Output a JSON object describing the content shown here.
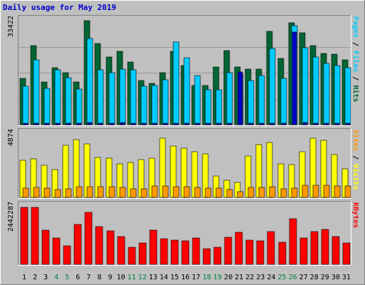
{
  "chart_data": {
    "type": "bar",
    "title": "Daily usage for May 2019",
    "days": [
      "1",
      "2",
      "3",
      "4",
      "5",
      "6",
      "7",
      "8",
      "9",
      "10",
      "11",
      "12",
      "13",
      "14",
      "15",
      "16",
      "17",
      "18",
      "19",
      "20",
      "21",
      "22",
      "23",
      "24",
      "25",
      "26",
      "27",
      "28",
      "29",
      "30",
      "31"
    ],
    "weekend_days": [
      "4",
      "5",
      "11",
      "12",
      "18",
      "19",
      "25",
      "26"
    ],
    "colors": {
      "hits": "#006633",
      "files": "#00ccff",
      "pages": "#0000cc",
      "visits": "#ffff00",
      "sites": "#ff9900",
      "kbytes": "#ff0000",
      "plot_bg": "#c0c0c0",
      "frame_bg": "#c0c0c0",
      "weekday_label": "#000000",
      "weekend_label": "#007f3f"
    },
    "panels": [
      {
        "id": "hits-files-pages",
        "max_label": "33422",
        "ymax": 33422,
        "side_labels": [
          {
            "text": "Pages",
            "color": "#00ccff"
          },
          {
            "text": " / ",
            "color": "#000000"
          },
          {
            "text": "Files",
            "color": "#00ccff"
          },
          {
            "text": " / ",
            "color": "#000000"
          },
          {
            "text": "Hits",
            "color": "#006633"
          }
        ],
        "series": [
          {
            "name": "Hits",
            "color": "#006633",
            "values": [
              14900,
              25300,
              13700,
              18200,
              16700,
              13800,
              33400,
              26000,
              21800,
              23600,
              20200,
              14300,
              13300,
              16800,
              23600,
              19100,
              12700,
              12600,
              18600,
              23700,
              18600,
              17800,
              17800,
              30100,
              21400,
              32800,
              29500,
              25300,
              23000,
              22600,
              20900
            ]
          },
          {
            "name": "Files",
            "color": "#00ccff",
            "values": [
              12300,
              20800,
              11600,
              17700,
              15200,
              11400,
              27700,
              17700,
              16600,
              17800,
              17700,
              12300,
              12700,
              14400,
              26500,
              21500,
              15700,
              11300,
              11300,
              16700,
              16300,
              14100,
              15900,
              24500,
              14900,
              31800,
              24700,
              21700,
              19800,
              19000,
              18200
            ]
          },
          {
            "name": "Pages",
            "color": "#0000cc",
            "values": [
              500,
              500,
              400,
              500,
              400,
              400,
              700,
              500,
              500,
              600,
              500,
              400,
              400,
              500,
              500,
              500,
              400,
              400,
              400,
              500,
              17000,
              500,
              500,
              500,
              400,
              29800,
              600,
              500,
              500,
              500,
              500
            ]
          }
        ]
      },
      {
        "id": "visits-sites",
        "max_label": "4874",
        "ymax": 4874,
        "side_labels": [
          {
            "text": "Sites",
            "color": "#ff9900"
          },
          {
            "text": " / ",
            "color": "#000000"
          },
          {
            "text": "Visits",
            "color": "#ffff00"
          }
        ],
        "series": [
          {
            "name": "Visits",
            "color": "#ffff00",
            "values": [
              2850,
              2950,
              2450,
              2150,
              4000,
              4450,
              4100,
              3050,
              3000,
              2600,
              2700,
              2900,
              3000,
              4550,
              3950,
              3800,
              3500,
              3350,
              1650,
              1300,
              1150,
              3200,
              4050,
              4200,
              2550,
              2500,
              3500,
              4550,
              4400,
              3300,
              2200
            ]
          },
          {
            "name": "Sites",
            "color": "#ff9900",
            "values": [
              700,
              750,
              700,
              600,
              650,
              800,
              800,
              800,
              800,
              750,
              650,
              650,
              850,
              850,
              800,
              800,
              750,
              700,
              700,
              600,
              450,
              750,
              750,
              800,
              650,
              700,
              950,
              950,
              950,
              900,
              850
            ]
          }
        ]
      },
      {
        "id": "kbytes",
        "max_label": "2442287",
        "ymax": 2442287,
        "side_labels": [
          {
            "text": "KBytes",
            "color": "#ff0000"
          }
        ],
        "series": [
          {
            "name": "KBytes",
            "color": "#ff0000",
            "values": [
              2400000,
              2420000,
              1450000,
              1130000,
              780000,
              1690000,
              2200000,
              1600000,
              1420000,
              1190000,
              730000,
              890000,
              1460000,
              1100000,
              1040000,
              990000,
              1130000,
              660000,
              720000,
              1150000,
              1350000,
              1040000,
              1000000,
              1380000,
              920000,
              1930000,
              1120000,
              1390000,
              1480000,
              1180000,
              900000
            ]
          }
        ]
      }
    ]
  }
}
